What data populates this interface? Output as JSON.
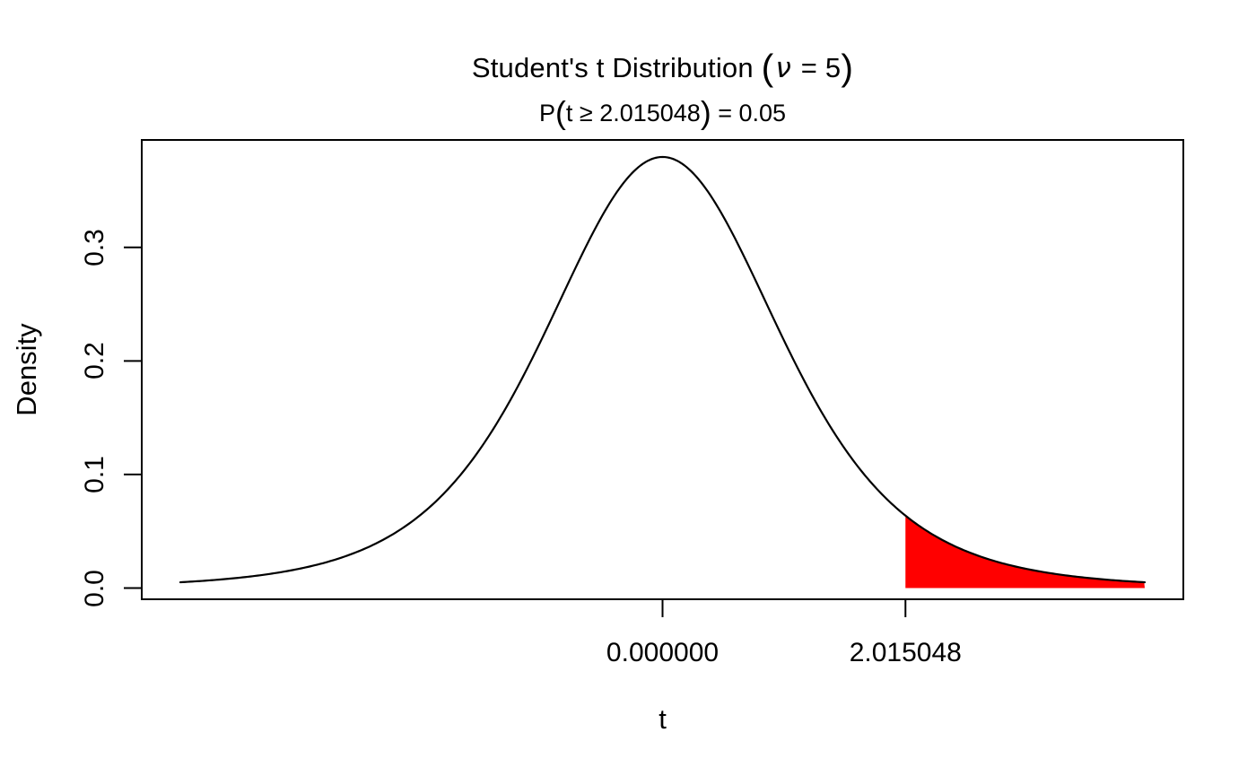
{
  "page": {
    "background": "#FFFFFF"
  },
  "title_parts": {
    "main": "Student's t Distribution",
    "paren_open": "(",
    "nu": "ν",
    "eq": " = 5",
    "paren_close": ")"
  },
  "subtitle_parts": {
    "prefix": "P",
    "paren_open": "(",
    "body": "t ≥ 2.015048",
    "paren_close": ")",
    "suffix": " = 0.05"
  },
  "chart_data": {
    "type": "line",
    "title": "Student's t Distribution (ν = 5)",
    "subtitle": "P(t ≥ 2.015048) = 0.05",
    "xlabel": "t",
    "ylabel": "Density",
    "distribution": {
      "name": "Student's t",
      "df": 5,
      "peak_density": 0.379607
    },
    "x_range": [
      -4,
      4
    ],
    "critical_value": 2.015048,
    "tail_probability": 0.05,
    "shade_side": "right",
    "grid": false,
    "legend": null,
    "xlim_padding": 0.04,
    "ylim": [
      0.0051,
      0.3796
    ],
    "colors": {
      "curve": "#000000",
      "shade": "#FF0000",
      "axis": "#000000",
      "background": "#FFFFFF"
    },
    "x_ticks": [
      {
        "value": 0,
        "label": "0.000000"
      },
      {
        "value": 2.015048,
        "label": "2.015048"
      }
    ],
    "y_ticks": [
      {
        "value": 0.0,
        "label": "0.0"
      },
      {
        "value": 0.1,
        "label": "0.1"
      },
      {
        "value": 0.2,
        "label": "0.2"
      },
      {
        "value": 0.3,
        "label": "0.3"
      }
    ],
    "samples": {
      "t": [
        -4,
        -3.5,
        -3,
        -2.5,
        -2,
        -1.5,
        -1,
        -0.5,
        0,
        0.5,
        1,
        1.5,
        2,
        2.5,
        3,
        3.5,
        4
      ],
      "density": [
        0.0051,
        0.0092,
        0.0173,
        0.0333,
        0.0651,
        0.1245,
        0.2197,
        0.3279,
        0.3796,
        0.3279,
        0.2197,
        0.1245,
        0.0651,
        0.0333,
        0.0173,
        0.0092,
        0.0051
      ]
    }
  }
}
